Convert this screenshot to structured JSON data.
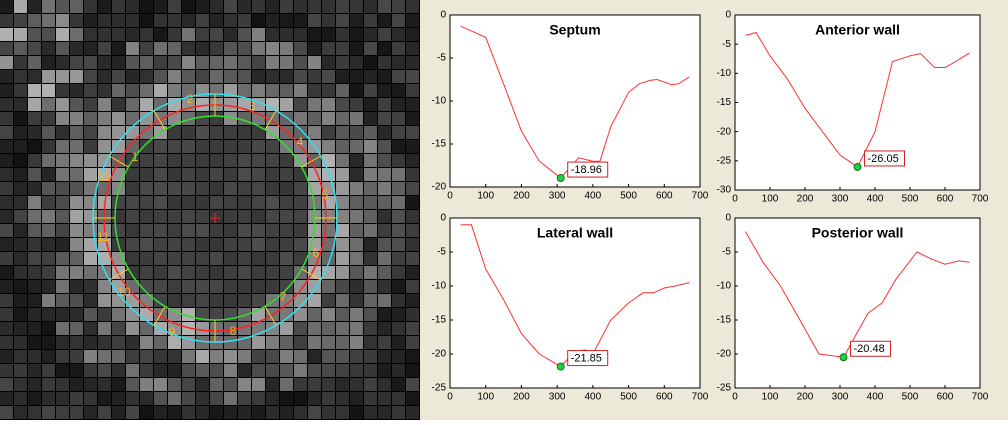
{
  "segments": [
    "1",
    "2",
    "3",
    "4",
    "5",
    "6",
    "7",
    "8",
    "9",
    "10",
    "11",
    "12"
  ],
  "chart_data": [
    {
      "type": "line",
      "title": "Septum",
      "x": [
        30,
        100,
        150,
        200,
        250,
        310,
        360,
        400,
        420,
        450,
        500,
        530,
        560,
        580,
        620,
        640,
        670
      ],
      "series": [
        {
          "color": "#ff3030",
          "values": [
            -1.3,
            -2.6,
            -8,
            -13.5,
            -17,
            -18.96,
            -16.6,
            -17,
            -17,
            -13,
            -9,
            -8,
            -7.6,
            -7.5,
            -8.1,
            -8,
            -7.2
          ]
        }
      ],
      "annotation": {
        "x": 310,
        "y": -18.96
      },
      "xlim": [
        0,
        700
      ],
      "xticks": [
        0,
        100,
        200,
        300,
        400,
        500,
        600,
        700
      ],
      "ylim": [
        -20,
        0
      ],
      "yticks": [
        -20,
        -15,
        -10,
        -5,
        0
      ]
    },
    {
      "type": "line",
      "title": "Anterior wall",
      "x": [
        30,
        60,
        100,
        150,
        200,
        250,
        300,
        350,
        400,
        450,
        500,
        530,
        570,
        600,
        630,
        670
      ],
      "series": [
        {
          "color": "#ff3030",
          "values": [
            -3.5,
            -3,
            -7,
            -11,
            -16,
            -20,
            -24,
            -26.05,
            -20,
            -8,
            -7,
            -6.6,
            -9,
            -9,
            -8,
            -6.5
          ]
        }
      ],
      "annotation": {
        "x": 350,
        "y": -26.05
      },
      "xlim": [
        0,
        700
      ],
      "xticks": [
        0,
        100,
        200,
        300,
        400,
        500,
        600,
        700
      ],
      "ylim": [
        -30,
        0
      ],
      "yticks": [
        -30,
        -25,
        -20,
        -15,
        -10,
        -5,
        0
      ]
    },
    {
      "type": "line",
      "title": "Lateral wall",
      "x": [
        30,
        60,
        100,
        150,
        200,
        250,
        310,
        350,
        380,
        400,
        450,
        500,
        540,
        570,
        600,
        630,
        670
      ],
      "series": [
        {
          "color": "#ff3030",
          "values": [
            -1,
            -1,
            -7.5,
            -12,
            -17,
            -20,
            -21.85,
            -19.6,
            -19.4,
            -20,
            -15,
            -12.5,
            -11,
            -11,
            -10.3,
            -10,
            -9.5
          ]
        }
      ],
      "annotation": {
        "x": 310,
        "y": -21.85
      },
      "xlim": [
        0,
        700
      ],
      "xticks": [
        0,
        100,
        200,
        300,
        400,
        500,
        600,
        700
      ],
      "ylim": [
        -25,
        0
      ],
      "yticks": [
        -25,
        -20,
        -15,
        -10,
        -5,
        0
      ]
    },
    {
      "type": "line",
      "title": "Posterior wall",
      "x": [
        30,
        80,
        130,
        180,
        240,
        310,
        380,
        420,
        460,
        520,
        560,
        600,
        640,
        670
      ],
      "series": [
        {
          "color": "#ff3030",
          "values": [
            -2,
            -6.5,
            -10,
            -14.5,
            -20,
            -20.48,
            -14,
            -12.5,
            -9,
            -5,
            -6,
            -6.8,
            -6.3,
            -6.5
          ]
        }
      ],
      "annotation": {
        "x": 310,
        "y": -20.48
      },
      "xlim": [
        0,
        700
      ],
      "xticks": [
        0,
        100,
        200,
        300,
        400,
        500,
        600,
        700
      ],
      "ylim": [
        -25,
        0
      ],
      "yticks": [
        -25,
        -20,
        -15,
        -10,
        -5,
        0
      ]
    }
  ]
}
